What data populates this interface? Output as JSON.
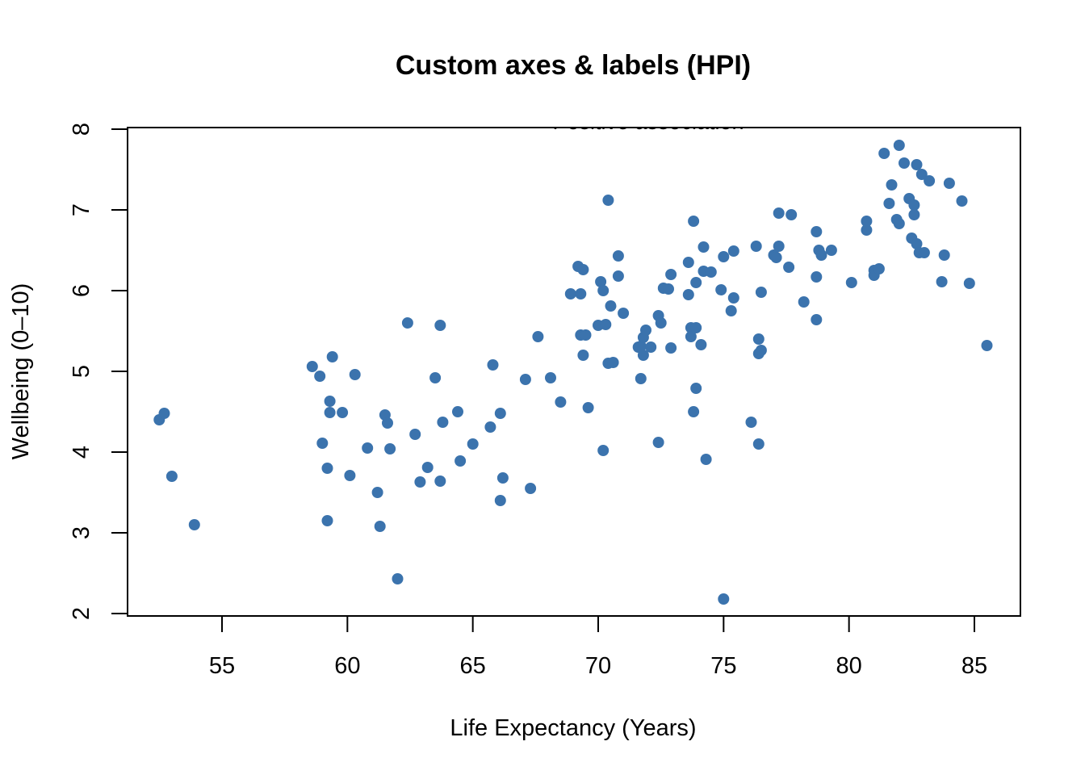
{
  "chart_data": {
    "type": "scatter",
    "title": "Custom axes & labels (HPI)",
    "xlabel": "Life Expectancy (Years)",
    "ylabel": "Wellbeing (0–10)",
    "annotation": "Positive association",
    "xticks": [
      55,
      60,
      65,
      70,
      75,
      80,
      85
    ],
    "yticks": [
      2,
      3,
      4,
      5,
      6,
      7,
      8
    ],
    "grid": false,
    "point_color": "#3b73ad",
    "points": [
      [
        52.5,
        4.4
      ],
      [
        52.7,
        4.48
      ],
      [
        53.0,
        3.7
      ],
      [
        53.9,
        3.1
      ],
      [
        58.6,
        5.06
      ],
      [
        58.9,
        4.94
      ],
      [
        59.0,
        4.11
      ],
      [
        59.2,
        3.8
      ],
      [
        59.2,
        3.15
      ],
      [
        59.3,
        4.63
      ],
      [
        59.3,
        4.49
      ],
      [
        59.4,
        5.18
      ],
      [
        59.8,
        4.49
      ],
      [
        60.1,
        3.71
      ],
      [
        60.3,
        4.96
      ],
      [
        60.8,
        4.05
      ],
      [
        61.2,
        3.5
      ],
      [
        61.3,
        3.08
      ],
      [
        61.5,
        4.46
      ],
      [
        61.6,
        4.36
      ],
      [
        61.7,
        4.04
      ],
      [
        62.0,
        2.43
      ],
      [
        62.4,
        5.6
      ],
      [
        62.7,
        4.22
      ],
      [
        62.9,
        3.63
      ],
      [
        63.2,
        3.81
      ],
      [
        63.5,
        4.92
      ],
      [
        63.7,
        5.57
      ],
      [
        63.7,
        3.64
      ],
      [
        63.8,
        4.37
      ],
      [
        64.4,
        4.5
      ],
      [
        64.5,
        3.89
      ],
      [
        65.0,
        4.1
      ],
      [
        65.7,
        4.31
      ],
      [
        65.8,
        5.08
      ],
      [
        66.1,
        4.48
      ],
      [
        66.1,
        3.4
      ],
      [
        66.2,
        3.68
      ],
      [
        67.1,
        4.9
      ],
      [
        67.3,
        3.55
      ],
      [
        67.6,
        5.43
      ],
      [
        68.1,
        4.92
      ],
      [
        68.5,
        4.62
      ],
      [
        68.9,
        5.96
      ],
      [
        69.2,
        6.3
      ],
      [
        69.3,
        5.96
      ],
      [
        69.3,
        5.45
      ],
      [
        69.4,
        5.2
      ],
      [
        69.4,
        6.26
      ],
      [
        69.5,
        5.45
      ],
      [
        69.6,
        4.55
      ],
      [
        70.0,
        5.57
      ],
      [
        70.1,
        6.11
      ],
      [
        70.2,
        6.0
      ],
      [
        70.2,
        4.02
      ],
      [
        70.3,
        5.58
      ],
      [
        70.4,
        5.1
      ],
      [
        70.4,
        7.12
      ],
      [
        70.5,
        5.81
      ],
      [
        70.6,
        5.11
      ],
      [
        70.8,
        6.43
      ],
      [
        70.8,
        6.18
      ],
      [
        71.0,
        5.72
      ],
      [
        71.6,
        5.3
      ],
      [
        71.7,
        5.31
      ],
      [
        71.7,
        4.91
      ],
      [
        71.8,
        5.42
      ],
      [
        71.8,
        5.2
      ],
      [
        71.9,
        5.51
      ],
      [
        72.1,
        5.3
      ],
      [
        72.4,
        5.69
      ],
      [
        72.4,
        4.12
      ],
      [
        72.5,
        5.6
      ],
      [
        72.6,
        6.03
      ],
      [
        72.8,
        6.02
      ],
      [
        72.9,
        5.29
      ],
      [
        72.9,
        6.2
      ],
      [
        73.6,
        6.35
      ],
      [
        73.6,
        5.95
      ],
      [
        73.7,
        5.54
      ],
      [
        73.7,
        5.43
      ],
      [
        73.8,
        6.86
      ],
      [
        73.8,
        4.5
      ],
      [
        73.9,
        6.1
      ],
      [
        73.9,
        5.54
      ],
      [
        73.9,
        4.79
      ],
      [
        74.1,
        5.33
      ],
      [
        74.2,
        6.54
      ],
      [
        74.2,
        6.24
      ],
      [
        74.3,
        3.91
      ],
      [
        74.5,
        6.23
      ],
      [
        74.9,
        6.01
      ],
      [
        75.0,
        6.42
      ],
      [
        75.0,
        2.18
      ],
      [
        75.3,
        5.75
      ],
      [
        75.4,
        5.91
      ],
      [
        75.4,
        6.49
      ],
      [
        76.1,
        4.37
      ],
      [
        76.3,
        6.55
      ],
      [
        76.4,
        5.4
      ],
      [
        76.4,
        5.22
      ],
      [
        76.4,
        4.1
      ],
      [
        76.5,
        5.26
      ],
      [
        76.5,
        5.98
      ],
      [
        77.0,
        6.44
      ],
      [
        77.1,
        6.41
      ],
      [
        77.2,
        6.55
      ],
      [
        77.2,
        6.96
      ],
      [
        77.6,
        6.29
      ],
      [
        77.7,
        6.94
      ],
      [
        78.2,
        5.86
      ],
      [
        78.7,
        6.73
      ],
      [
        78.7,
        6.17
      ],
      [
        78.7,
        5.64
      ],
      [
        78.8,
        6.5
      ],
      [
        78.9,
        6.44
      ],
      [
        79.3,
        6.5
      ],
      [
        80.1,
        6.1
      ],
      [
        80.7,
        6.75
      ],
      [
        80.7,
        6.86
      ],
      [
        81.0,
        6.25
      ],
      [
        81.0,
        6.19
      ],
      [
        81.2,
        6.27
      ],
      [
        81.4,
        7.7
      ],
      [
        81.6,
        7.08
      ],
      [
        81.7,
        7.31
      ],
      [
        81.9,
        6.88
      ],
      [
        82.0,
        6.83
      ],
      [
        82.0,
        7.8
      ],
      [
        82.2,
        7.58
      ],
      [
        82.4,
        7.14
      ],
      [
        82.5,
        6.65
      ],
      [
        82.6,
        7.06
      ],
      [
        82.6,
        6.94
      ],
      [
        82.7,
        7.56
      ],
      [
        82.7,
        6.58
      ],
      [
        82.8,
        6.47
      ],
      [
        82.9,
        7.44
      ],
      [
        83.0,
        6.47
      ],
      [
        83.2,
        7.36
      ],
      [
        83.7,
        6.11
      ],
      [
        83.8,
        6.44
      ],
      [
        84.0,
        7.33
      ],
      [
        84.5,
        7.11
      ],
      [
        84.8,
        6.09
      ],
      [
        85.5,
        5.32
      ]
    ]
  }
}
